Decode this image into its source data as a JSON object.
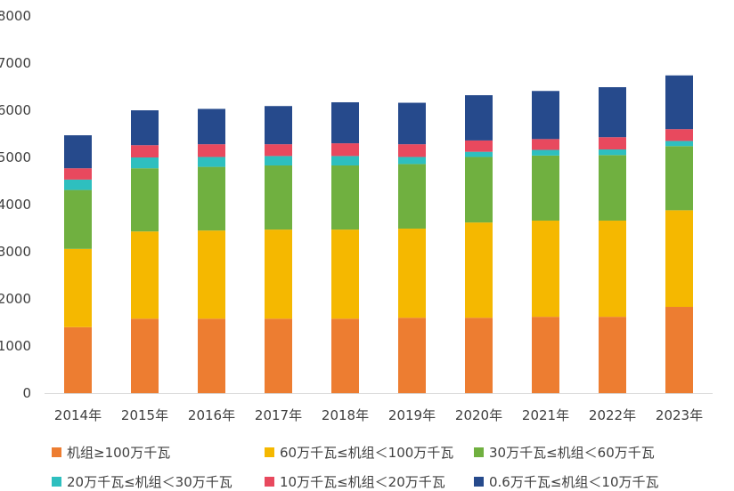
{
  "chart_data": {
    "type": "bar",
    "stacked": true,
    "categories": [
      "2014年",
      "2015年",
      "2016年",
      "2017年",
      "2018年",
      "2019年",
      "2020年",
      "2021年",
      "2022年",
      "2023年"
    ],
    "ylim": [
      0,
      8000
    ],
    "yticks": [
      0,
      1000,
      2000,
      3000,
      4000,
      5000,
      6000,
      7000,
      8000
    ],
    "grid": false,
    "legend_position": "bottom",
    "series": [
      {
        "name": "机组≥100万千瓦",
        "color": "#ED7D31",
        "values": [
          1400,
          1580,
          1580,
          1580,
          1580,
          1600,
          1600,
          1620,
          1620,
          1830
        ]
      },
      {
        "name": "60万千瓦≤机组＜100万千瓦",
        "color": "#F5B800",
        "values": [
          1660,
          1850,
          1870,
          1890,
          1890,
          1890,
          2020,
          2040,
          2040,
          2050
        ]
      },
      {
        "name": "30万千瓦≤机组＜60万千瓦",
        "color": "#70B040",
        "values": [
          1250,
          1340,
          1350,
          1360,
          1360,
          1370,
          1390,
          1380,
          1390,
          1360
        ]
      },
      {
        "name": "20万千瓦≤机组＜30万千瓦",
        "color": "#2EBFBF",
        "values": [
          220,
          230,
          210,
          200,
          200,
          150,
          110,
          120,
          120,
          110
        ]
      },
      {
        "name": "10万千瓦≤机组＜20万千瓦",
        "color": "#E8495E",
        "values": [
          240,
          260,
          270,
          250,
          270,
          270,
          240,
          230,
          260,
          250
        ]
      },
      {
        "name": "0.6万千瓦≤机组＜10万千瓦",
        "color": "#264A8C",
        "values": [
          700,
          740,
          750,
          810,
          870,
          880,
          960,
          1020,
          1060,
          1140
        ]
      }
    ]
  }
}
